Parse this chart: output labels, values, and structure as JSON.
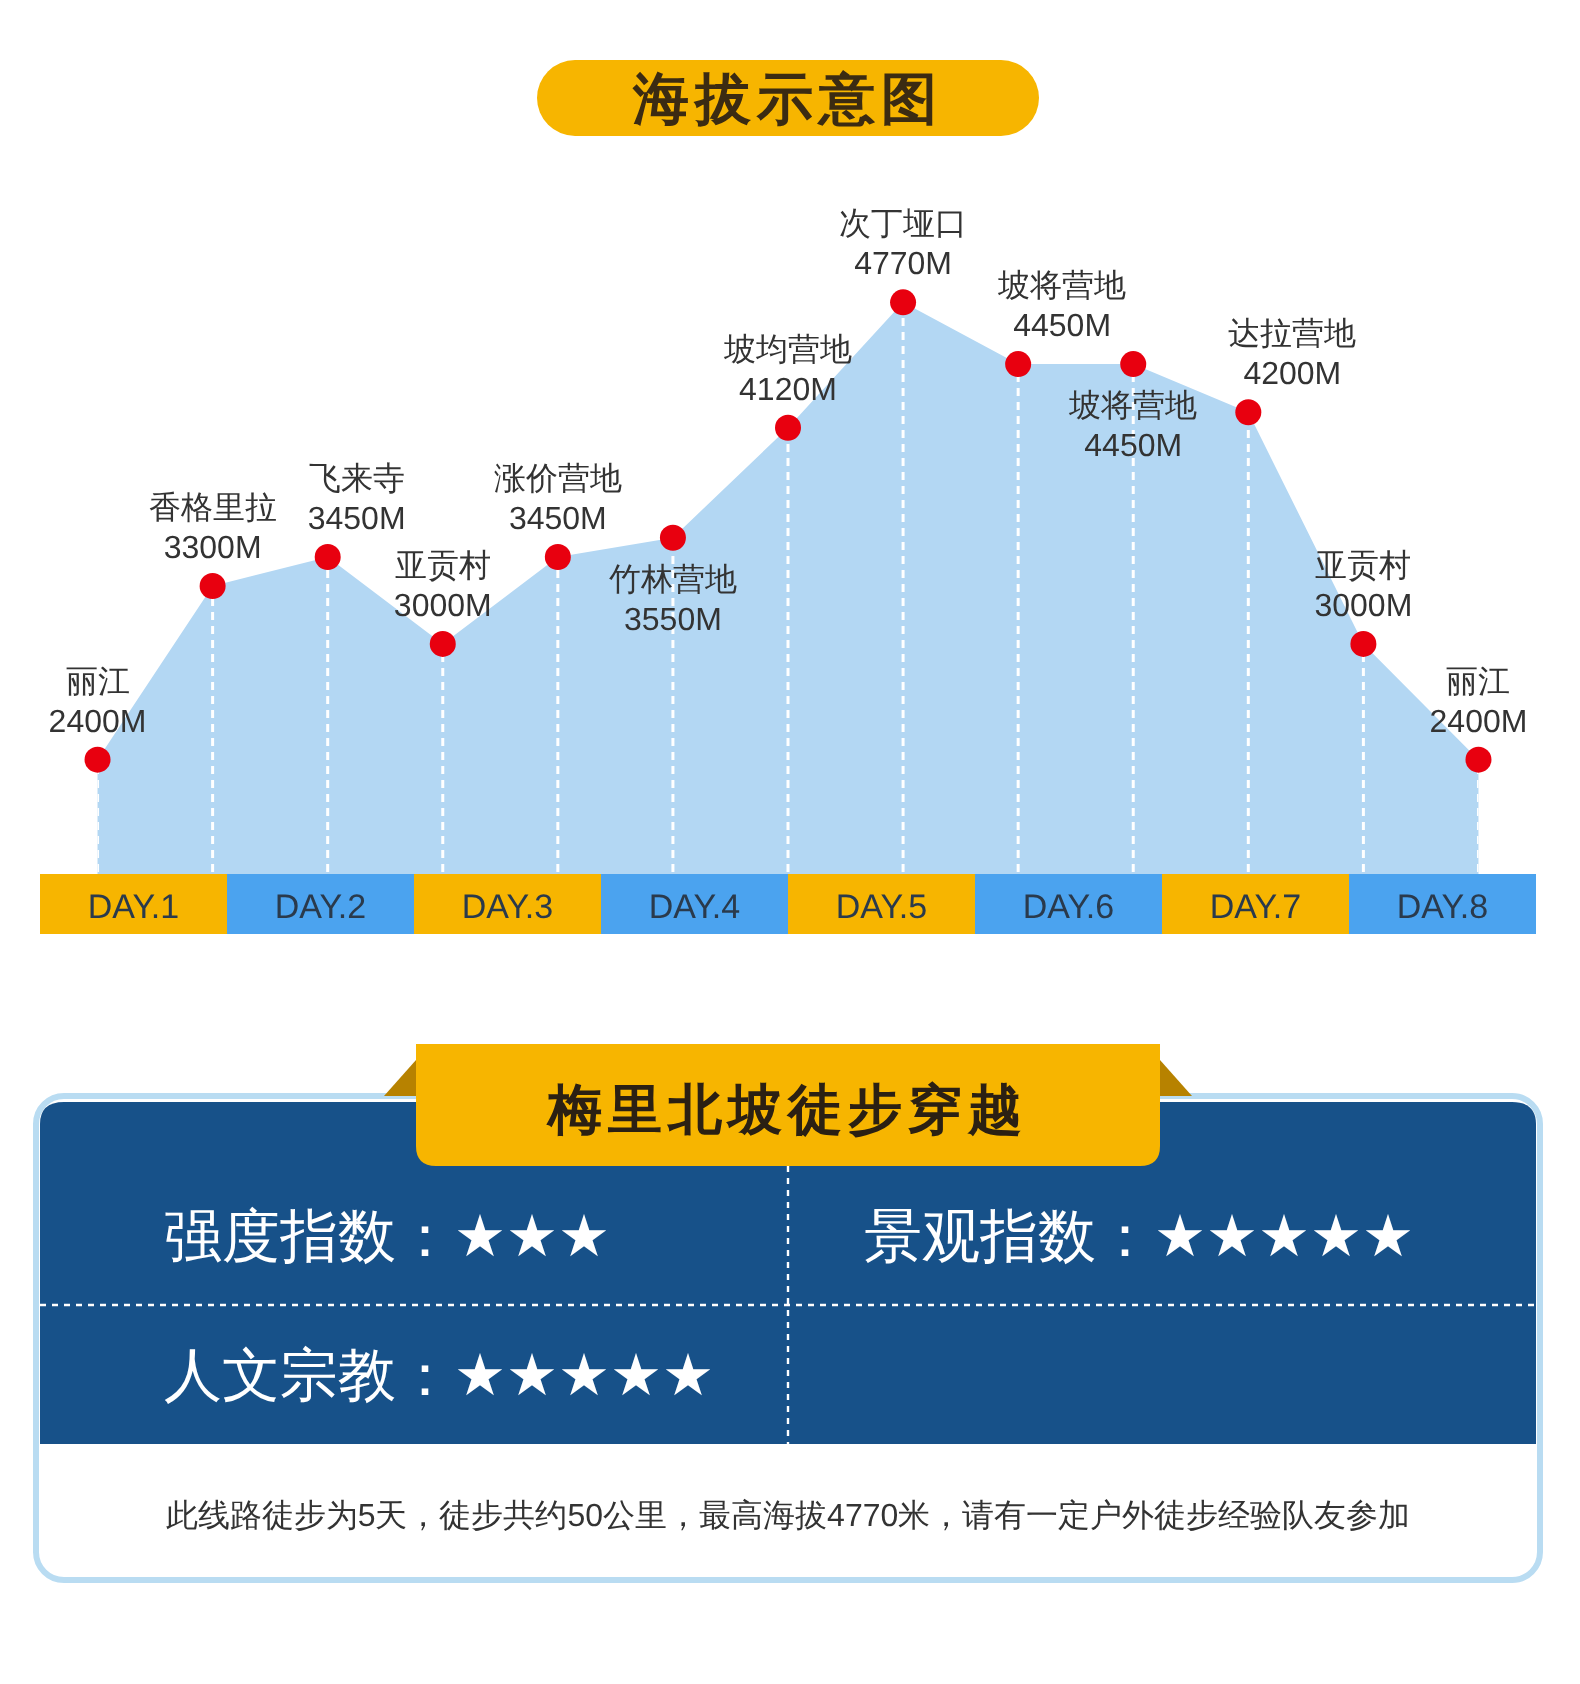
{
  "chart_data": [
    {
      "type": "area",
      "title": "海拔示意图",
      "categories": [
        "丽江",
        "香格里拉",
        "飞来寺",
        "亚贡村",
        "涨价营地",
        "竹林营地",
        "坡均营地",
        "次丁垭口",
        "坡将营地",
        "坡将营地",
        "达拉营地",
        "亚贡村",
        "丽江"
      ],
      "tick_labels": "x",
      "grid": "x",
      "series": [
        {
          "type": "area",
          "color": "#b3d7f3",
          "values": [
            2400,
            3300,
            3450,
            3000,
            3450,
            3550,
            4120,
            4770,
            4450,
            4450,
            4200,
            3000,
            2400
          ]
        },
        {
          "type": "scatter",
          "color": "#e8000f",
          "marker": "circle",
          "values": [
            2400,
            3300,
            3450,
            3000,
            3450,
            3550,
            4120,
            4770,
            4450,
            4450,
            4200,
            3000,
            2400
          ],
          "value_labels": [
            "2400M",
            "3300M",
            "3450M",
            "3000M",
            "3450M",
            "3550M",
            "4120M",
            "4770M",
            "4450M",
            "4450M",
            "4200M",
            "3000M",
            "2400M"
          ]
        }
      ],
      "annotations": [
        "DAY.1",
        "DAY.2",
        "DAY.3",
        "DAY.4",
        "DAY.5",
        "DAY.6",
        "DAY.7",
        "DAY.8"
      ]
    },
    {
      "type": "other",
      "title": "梅里北坡徒步穿越",
      "annotations": [
        "强度指数：★★★",
        "景观指数：★★★★★",
        "人文宗教：★★★★★",
        "此线路徒步为5天，徒步共约50公里，最高海拔4770米，请有一定户外徒步经验队友参加"
      ]
    }
  ]
}
